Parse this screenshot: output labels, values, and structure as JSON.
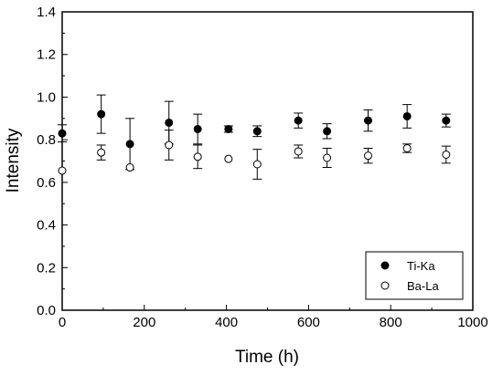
{
  "chart_data": {
    "type": "scatter",
    "xlabel": "Time (h)",
    "ylabel": "Intensity",
    "xlim": [
      0,
      1000
    ],
    "ylim": [
      0.0,
      1.4
    ],
    "xticks": [
      0,
      200,
      400,
      600,
      800,
      1000
    ],
    "yticks": [
      0.0,
      0.2,
      0.4,
      0.6,
      0.8,
      1.0,
      1.2,
      1.4
    ],
    "xtick_labels": [
      "0",
      "200",
      "400",
      "600",
      "800",
      "1000"
    ],
    "ytick_labels": [
      "0.0",
      "0.2",
      "0.4",
      "0.6",
      "0.8",
      "1.0",
      "1.2",
      "1.4"
    ],
    "grid": false,
    "legend_position": "bottom-right",
    "series": [
      {
        "name": "Ti-Ka",
        "marker": "filled-circle",
        "color": "#000000",
        "x": [
          0,
          95,
          165,
          260,
          330,
          405,
          475,
          575,
          645,
          745,
          840,
          935
        ],
        "y": [
          0.83,
          0.92,
          0.78,
          0.88,
          0.85,
          0.85,
          0.84,
          0.89,
          0.84,
          0.89,
          0.91,
          0.89
        ],
        "err": [
          0.04,
          0.09,
          0.12,
          0.1,
          0.07,
          0.015,
          0.025,
          0.035,
          0.035,
          0.05,
          0.055,
          0.03
        ]
      },
      {
        "name": "Ba-La",
        "marker": "open-circle",
        "color": "#000000",
        "x": [
          0,
          95,
          165,
          260,
          330,
          405,
          475,
          575,
          645,
          745,
          840,
          935
        ],
        "y": [
          0.655,
          0.74,
          0.67,
          0.775,
          0.72,
          0.71,
          0.685,
          0.745,
          0.715,
          0.725,
          0.76,
          0.73
        ],
        "err": [
          0.0,
          0.035,
          0.0,
          0.07,
          0.055,
          0.0,
          0.07,
          0.03,
          0.045,
          0.035,
          0.02,
          0.04
        ]
      }
    ]
  }
}
